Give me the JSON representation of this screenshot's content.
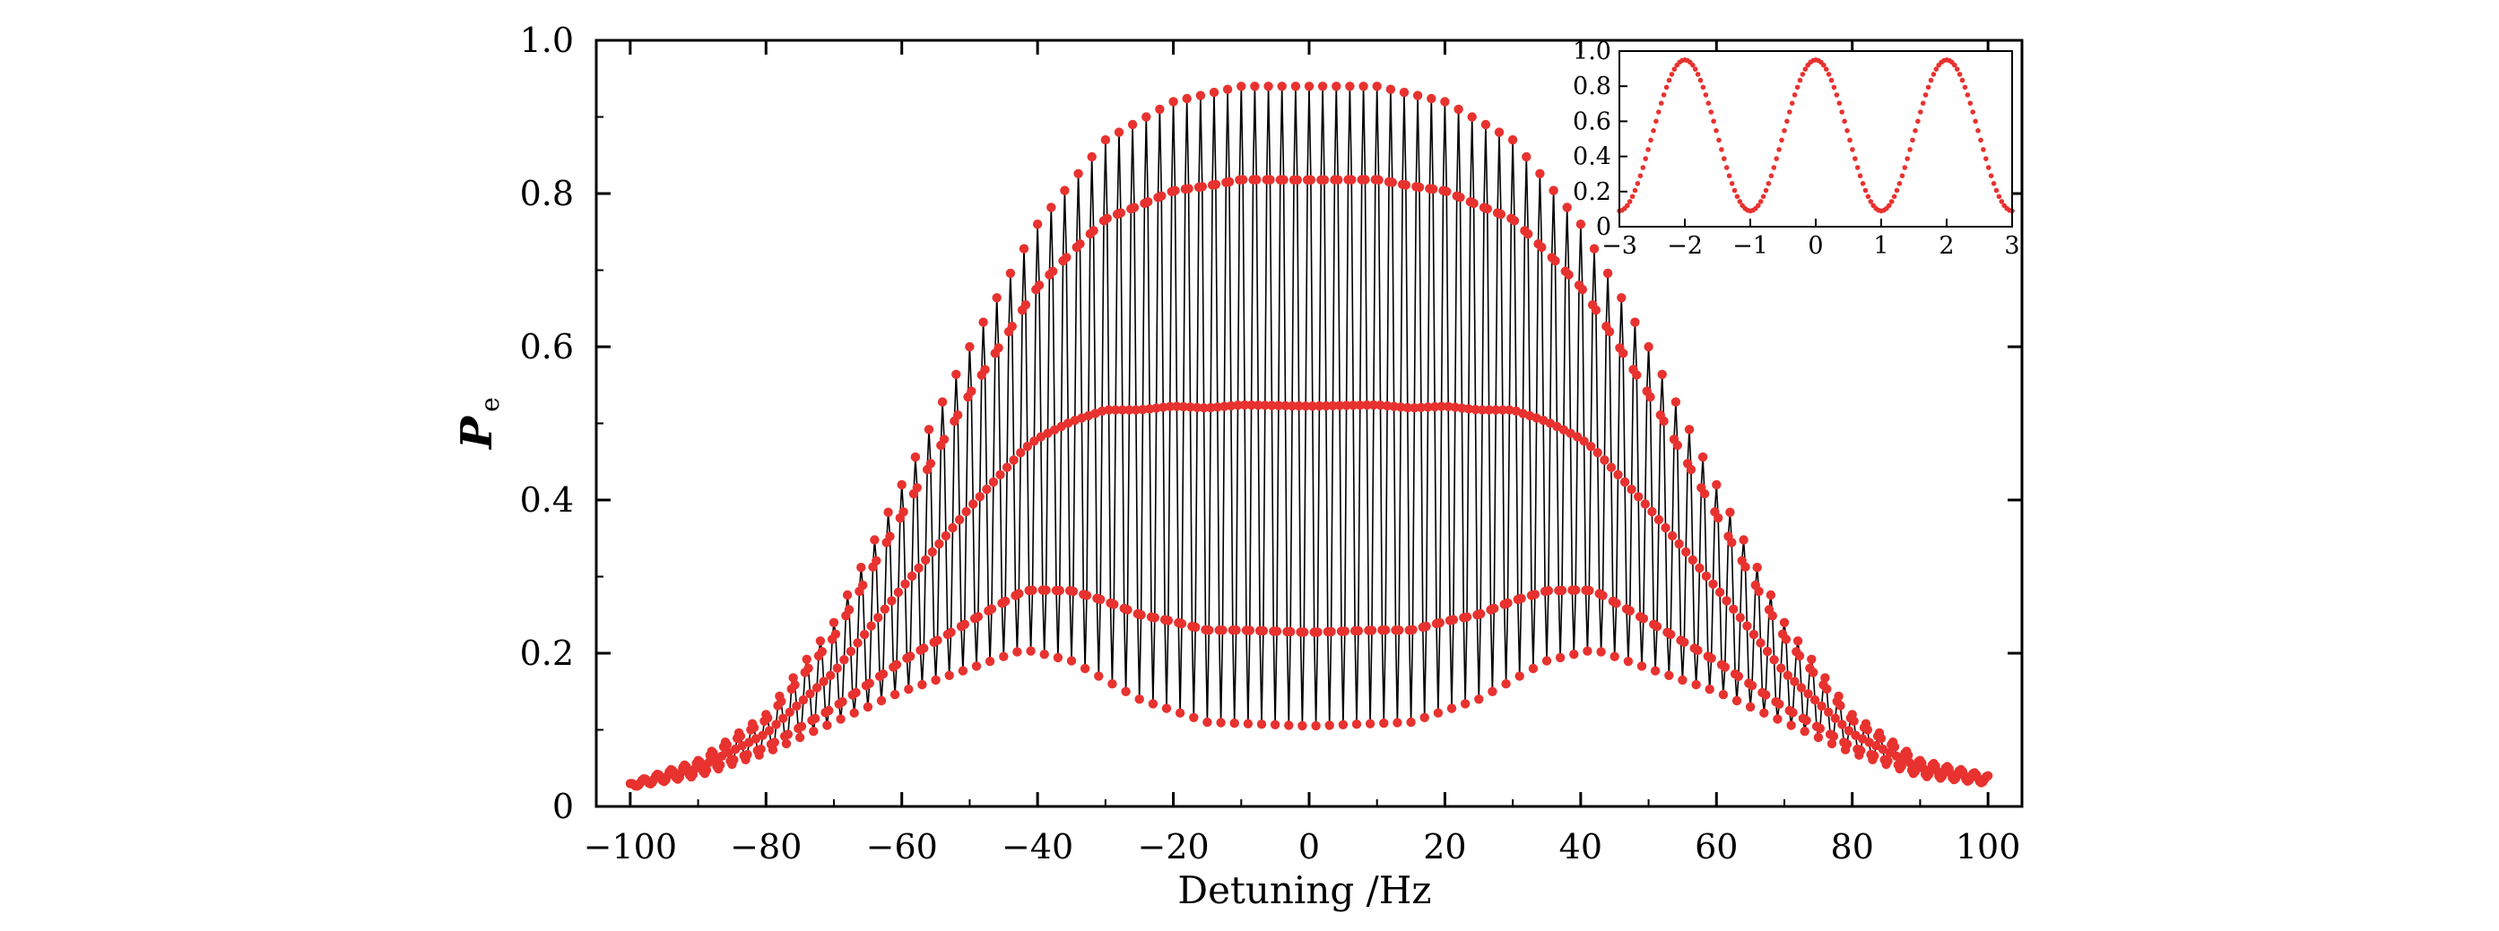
{
  "chart_data": [
    {
      "type": "scatter",
      "description_key": "main",
      "xlabel": "Detuning /Hz",
      "ylabel": {
        "main": "P",
        "subscript": "e"
      },
      "xlim": [
        -105,
        105
      ],
      "ylim": [
        0,
        1.0
      ],
      "x_ticks": [
        -100,
        -80,
        -60,
        -40,
        -20,
        0,
        20,
        40,
        60,
        80,
        100
      ],
      "x_tick_labels": [
        "−100",
        "−80",
        "−60",
        "−40",
        "−20",
        "0",
        "20",
        "40",
        "60",
        "80",
        "100"
      ],
      "y_ticks": [
        0,
        0.2,
        0.4,
        0.6,
        0.8,
        1.0
      ],
      "y_tick_labels": [
        "0",
        "0.2",
        "0.4",
        "0.6",
        "0.8",
        "1.0"
      ],
      "grid": false,
      "marker_color": "#e8322f",
      "line_color": "#000000",
      "series": [
        {
          "x_range": [
            -100,
            100
          ],
          "oscillation_period_hz": 2,
          "upper_envelope_points": [
            [
              -100,
              0.03
            ],
            [
              -90,
              0.06
            ],
            [
              -80,
              0.12
            ],
            [
              -70,
              0.24
            ],
            [
              -60,
              0.42
            ],
            [
              -50,
              0.6
            ],
            [
              -40,
              0.76
            ],
            [
              -30,
              0.87
            ],
            [
              -20,
              0.92
            ],
            [
              -10,
              0.94
            ],
            [
              0,
              0.94
            ],
            [
              10,
              0.94
            ],
            [
              20,
              0.92
            ],
            [
              30,
              0.87
            ],
            [
              40,
              0.76
            ],
            [
              50,
              0.6
            ],
            [
              60,
              0.42
            ],
            [
              70,
              0.24
            ],
            [
              80,
              0.12
            ],
            [
              90,
              0.06
            ],
            [
              100,
              0.04
            ]
          ],
          "lower_envelope_points": [
            [
              -100,
              0.025
            ],
            [
              -90,
              0.04
            ],
            [
              -80,
              0.07
            ],
            [
              -70,
              0.11
            ],
            [
              -60,
              0.15
            ],
            [
              -50,
              0.18
            ],
            [
              -42,
              0.205
            ],
            [
              -35,
              0.19
            ],
            [
              -25,
              0.14
            ],
            [
              -15,
              0.11
            ],
            [
              0,
              0.105
            ],
            [
              15,
              0.11
            ],
            [
              25,
              0.14
            ],
            [
              35,
              0.19
            ],
            [
              42,
              0.205
            ],
            [
              50,
              0.18
            ],
            [
              60,
              0.15
            ],
            [
              70,
              0.11
            ],
            [
              80,
              0.07
            ],
            [
              90,
              0.04
            ],
            [
              100,
              0.03
            ]
          ]
        }
      ]
    },
    {
      "type": "scatter",
      "description_key": "inset",
      "xlim": [
        -3,
        3
      ],
      "ylim": [
        0,
        1.0
      ],
      "x_ticks": [
        -3,
        -2,
        -1,
        0,
        1,
        2,
        3
      ],
      "x_tick_labels": [
        "−3",
        "−2",
        "−1",
        "0",
        "1",
        "2",
        "3"
      ],
      "y_ticks": [
        0,
        0.2,
        0.4,
        0.6,
        0.8,
        1.0
      ],
      "y_tick_labels": [
        "0",
        "0.2",
        "0.4",
        "0.6",
        "0.8",
        "1.0"
      ],
      "grid": false,
      "marker_color": "#e8322f",
      "series": [
        {
          "x_range": [
            -3,
            3
          ],
          "min_value": 0.09,
          "max_value": 0.95,
          "period": 2,
          "peaks_at": [
            -2,
            0,
            2
          ],
          "troughs_at": [
            -1,
            1
          ]
        }
      ]
    }
  ]
}
